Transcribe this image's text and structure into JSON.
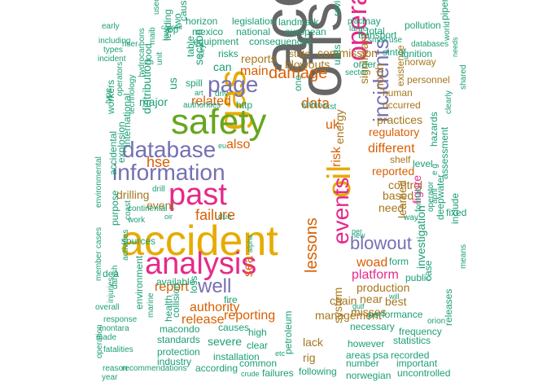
{
  "words": [
    {
      "text": "accidents",
      "color": "c7"
    },
    {
      "text": "offshore",
      "color": "c7"
    },
    {
      "text": "accident",
      "color": "c5"
    },
    {
      "text": "gas",
      "color": "c5"
    },
    {
      "text": "oil",
      "color": "c5"
    },
    {
      "text": "safety",
      "color": "c4"
    },
    {
      "text": "analysis",
      "color": "c3"
    },
    {
      "text": "past",
      "color": "c3"
    },
    {
      "text": "operations",
      "color": "c3"
    },
    {
      "text": "events",
      "color": "c3"
    },
    {
      "text": "database",
      "color": "c2"
    },
    {
      "text": "information",
      "color": "c2"
    },
    {
      "text": "page",
      "color": "c2"
    },
    {
      "text": "incidents",
      "color": "c2"
    },
    {
      "text": "blowout",
      "color": "c2"
    },
    {
      "text": "well",
      "color": "c2"
    },
    {
      "text": "damage",
      "color": "c1"
    },
    {
      "text": "data",
      "color": "c1"
    },
    {
      "text": "failure",
      "color": "c1"
    },
    {
      "text": "hse",
      "color": "c1"
    },
    {
      "text": "lessons",
      "color": "c1"
    },
    {
      "text": "risk",
      "color": "c1"
    },
    {
      "text": "uk",
      "color": "c1"
    },
    {
      "text": "woad",
      "color": "c1"
    },
    {
      "text": "platform",
      "color": "c3"
    },
    {
      "text": "main",
      "color": "c1"
    },
    {
      "text": "related",
      "color": "c1"
    },
    {
      "text": "also",
      "color": "c1"
    },
    {
      "text": "report",
      "color": "c1"
    },
    {
      "text": "sea",
      "color": "c1"
    },
    {
      "text": "authority",
      "color": "c1"
    },
    {
      "text": "release",
      "color": "c1"
    },
    {
      "text": "reporting",
      "color": "c1"
    },
    {
      "text": "different",
      "color": "c1"
    },
    {
      "text": "reported",
      "color": "c1"
    },
    {
      "text": "regulatory",
      "color": "c1"
    },
    {
      "text": "production",
      "color": "c6"
    },
    {
      "text": "lack",
      "color": "c6"
    },
    {
      "text": "rig",
      "color": "c6"
    },
    {
      "text": "management",
      "color": "c6"
    },
    {
      "text": "control",
      "color": "c6"
    },
    {
      "text": "figure",
      "color": "c3"
    },
    {
      "text": "need",
      "color": "c6"
    },
    {
      "text": "based",
      "color": "c6"
    },
    {
      "text": "shelf",
      "color": "c6"
    },
    {
      "text": "practices",
      "color": "c6"
    },
    {
      "text": "drilling",
      "color": "c6"
    },
    {
      "text": "event",
      "color": "c6"
    },
    {
      "text": "learned",
      "color": "c6"
    },
    {
      "text": "misses",
      "color": "c6"
    },
    {
      "text": "chain",
      "color": "c6"
    },
    {
      "text": "near",
      "color": "c6"
    },
    {
      "text": "best",
      "color": "c6"
    },
    {
      "text": "system",
      "color": "c6"
    },
    {
      "text": "significant",
      "color": "c6"
    },
    {
      "text": "north",
      "color": "c6"
    },
    {
      "text": "energy",
      "color": "c6"
    },
    {
      "text": "blowouts",
      "color": "c6"
    },
    {
      "text": "reports",
      "color": "c6"
    },
    {
      "text": "commission",
      "color": "c6"
    },
    {
      "text": "state",
      "color": "c6"
    },
    {
      "text": "existence",
      "color": "c6"
    },
    {
      "text": "human",
      "color": "c6"
    },
    {
      "text": "occurred",
      "color": "c6"
    },
    {
      "text": "personnel",
      "color": "c6"
    },
    {
      "text": "norway",
      "color": "c6"
    },
    {
      "text": "hazards",
      "color": "c0"
    },
    {
      "text": "level",
      "color": "c0"
    },
    {
      "text": "investigation",
      "color": "c0"
    },
    {
      "text": "performance",
      "color": "c0"
    },
    {
      "text": "necessary",
      "color": "c0"
    },
    {
      "text": "however",
      "color": "c0"
    },
    {
      "text": "number",
      "color": "c0"
    },
    {
      "text": "areas",
      "color": "c0"
    },
    {
      "text": "psa",
      "color": "c0"
    },
    {
      "text": "recorded",
      "color": "c0"
    },
    {
      "text": "statistics",
      "color": "c0"
    },
    {
      "text": "frequency",
      "color": "c0"
    },
    {
      "text": "norwegian",
      "color": "c0"
    },
    {
      "text": "following",
      "color": "c0"
    },
    {
      "text": "uncontrolled",
      "color": "c0"
    },
    {
      "text": "important",
      "color": "c0"
    },
    {
      "text": "releases",
      "color": "c0"
    },
    {
      "text": "orion",
      "color": "c0"
    },
    {
      "text": "public",
      "color": "c0"
    },
    {
      "text": "case",
      "color": "c0"
    },
    {
      "text": "form",
      "color": "c0"
    },
    {
      "text": "deepwater",
      "color": "c0"
    },
    {
      "text": "include",
      "color": "c0"
    },
    {
      "text": "means",
      "color": "c0"
    },
    {
      "text": "clearly",
      "color": "c0"
    },
    {
      "text": "shared",
      "color": "c0"
    },
    {
      "text": "assessment",
      "color": "c0"
    },
    {
      "text": "fixed",
      "color": "c0"
    },
    {
      "text": "e g",
      "color": "c0"
    },
    {
      "text": "april",
      "color": "c0"
    },
    {
      "text": "way",
      "color": "c0"
    },
    {
      "text": "operator",
      "color": "c0"
    },
    {
      "text": "format",
      "color": "c0"
    },
    {
      "text": "new",
      "color": "c0"
    },
    {
      "text": "per",
      "color": "c0"
    },
    {
      "text": "will",
      "color": "c0"
    },
    {
      "text": "gulf",
      "color": "c0"
    },
    {
      "text": "sintef",
      "color": "c0"
    },
    {
      "text": "ignition",
      "color": "c0"
    },
    {
      "text": "world",
      "color": "c0"
    },
    {
      "text": "needs",
      "color": "c0"
    },
    {
      "text": "piper",
      "color": "c0"
    },
    {
      "text": "transport",
      "color": "c0"
    },
    {
      "text": "total",
      "color": "c0"
    },
    {
      "text": "small",
      "color": "c0"
    },
    {
      "text": "use",
      "color": "c0"
    },
    {
      "text": "databases",
      "color": "c0"
    },
    {
      "text": "pollution",
      "color": "c0"
    },
    {
      "text": "may",
      "color": "c0"
    },
    {
      "text": "place",
      "color": "c0"
    },
    {
      "text": "large",
      "color": "c0"
    },
    {
      "text": "order",
      "color": "c0"
    },
    {
      "text": "sector",
      "color": "c0"
    },
    {
      "text": "units",
      "color": "c0"
    },
    {
      "text": "review",
      "color": "c0"
    },
    {
      "text": "landmark",
      "color": "c0"
    },
    {
      "text": "european",
      "color": "c0"
    },
    {
      "text": "legislation",
      "color": "c0"
    },
    {
      "text": "horizon",
      "color": "c0"
    },
    {
      "text": "mexico",
      "color": "c0"
    },
    {
      "text": "national",
      "color": "c0"
    },
    {
      "text": "consequences",
      "color": "c0"
    },
    {
      "text": "equipment",
      "color": "c0"
    },
    {
      "text": "risks",
      "color": "c0"
    },
    {
      "text": "can",
      "color": "c0"
    },
    {
      "text": "dnv",
      "color": "c0"
    },
    {
      "text": "spill",
      "color": "c0"
    },
    {
      "text": "art",
      "color": "c0"
    },
    {
      "text": "http",
      "color": "c0"
    },
    {
      "text": "one",
      "color": "c0"
    },
    {
      "text": "within",
      "color": "c0"
    },
    {
      "text": "first",
      "color": "c0"
    },
    {
      "text": "eu",
      "color": "c0"
    },
    {
      "text": "drill",
      "color": "c0"
    },
    {
      "text": "oir",
      "color": "c0"
    },
    {
      "text": "due",
      "color": "c0"
    },
    {
      "text": "alpha",
      "color": "c0"
    },
    {
      "text": "collision",
      "color": "c0"
    },
    {
      "text": "loss",
      "color": "c0"
    },
    {
      "text": "fire",
      "color": "c0"
    },
    {
      "text": "causes",
      "color": "c0"
    },
    {
      "text": "severe",
      "color": "c0"
    },
    {
      "text": "high",
      "color": "c0"
    },
    {
      "text": "clear",
      "color": "c0"
    },
    {
      "text": "petroleum",
      "color": "c0"
    },
    {
      "text": "etc",
      "color": "c0"
    },
    {
      "text": "installation",
      "color": "c0"
    },
    {
      "text": "common",
      "color": "c0"
    },
    {
      "text": "failures",
      "color": "c0"
    },
    {
      "text": "crude",
      "color": "c0"
    },
    {
      "text": "according",
      "color": "c0"
    },
    {
      "text": "industry",
      "color": "c0"
    },
    {
      "text": "protection",
      "color": "c0"
    },
    {
      "text": "standards",
      "color": "c0"
    },
    {
      "text": "macondo",
      "color": "c0"
    },
    {
      "text": "health",
      "color": "c0"
    },
    {
      "text": "marine",
      "color": "c0"
    },
    {
      "text": "environment",
      "color": "c0"
    },
    {
      "text": "available",
      "color": "c0"
    },
    {
      "text": "injuries",
      "color": "c0"
    },
    {
      "text": "danish",
      "color": "c0"
    },
    {
      "text": "member",
      "color": "c0"
    },
    {
      "text": "cases",
      "color": "c0"
    },
    {
      "text": "activities",
      "color": "c0"
    },
    {
      "text": "dea",
      "color": "c0"
    },
    {
      "text": "sources",
      "color": "c0"
    },
    {
      "text": "purpose",
      "color": "c0"
    },
    {
      "text": "environmental",
      "color": "c0"
    },
    {
      "text": "coast",
      "color": "c0"
    },
    {
      "text": "work",
      "color": "c0"
    },
    {
      "text": "continental",
      "color": "c0"
    },
    {
      "text": "accidental",
      "color": "c0"
    },
    {
      "text": "explosion",
      "color": "c0"
    },
    {
      "text": "international",
      "color": "c0"
    },
    {
      "text": "technology",
      "color": "c0"
    },
    {
      "text": "operators",
      "color": "c0"
    },
    {
      "text": "workers",
      "color": "c0"
    },
    {
      "text": "type",
      "color": "c0"
    },
    {
      "text": "major",
      "color": "c0"
    },
    {
      "text": "distribution",
      "color": "c0"
    },
    {
      "text": "us",
      "color": "c0"
    },
    {
      "text": "authorities",
      "color": "c0"
    },
    {
      "text": "table",
      "color": "c0"
    },
    {
      "text": "section",
      "color": "c0"
    },
    {
      "text": "unit",
      "color": "c0"
    },
    {
      "text": "hydrocarbons",
      "color": "c0"
    },
    {
      "text": "good",
      "color": "c0"
    },
    {
      "text": "leading",
      "color": "c0"
    },
    {
      "text": "two",
      "color": "c0"
    },
    {
      "text": "key",
      "color": "c0"
    },
    {
      "text": "cause",
      "color": "c0"
    },
    {
      "text": "bp",
      "color": "c0"
    },
    {
      "text": "caused",
      "color": "c0"
    },
    {
      "text": "low",
      "color": "c0"
    },
    {
      "text": "maib",
      "color": "c0"
    },
    {
      "text": "used",
      "color": "c0"
    },
    {
      "text": "riser",
      "color": "c0"
    },
    {
      "text": "early",
      "color": "c0"
    },
    {
      "text": "including",
      "color": "c0"
    },
    {
      "text": "types",
      "color": "c0"
    },
    {
      "text": "incident",
      "color": "c0"
    },
    {
      "text": "overall",
      "color": "c0"
    },
    {
      "text": "response",
      "color": "c0"
    },
    {
      "text": "montara",
      "color": "c0"
    },
    {
      "text": "made",
      "color": "c0"
    },
    {
      "text": "fatalities",
      "color": "c0"
    },
    {
      "text": "reason",
      "color": "c0"
    },
    {
      "text": "recommendations",
      "color": "c0"
    },
    {
      "text": "operation",
      "color": "c0"
    },
    {
      "text": "year",
      "color": "c0"
    }
  ]
}
